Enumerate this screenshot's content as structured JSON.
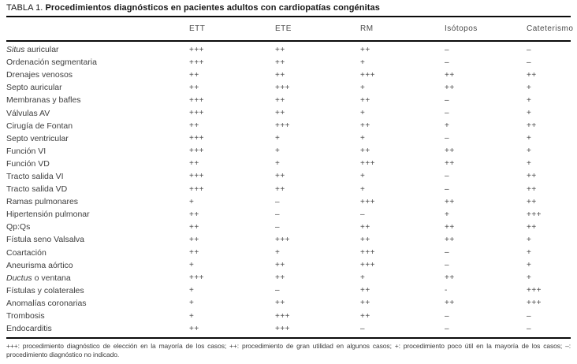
{
  "title": {
    "prefix": "TABLA 1.",
    "text": "Procedimientos diagnósticos en pacientes adultos con cardiopatías congénitas"
  },
  "table": {
    "columns": [
      "ETT",
      "ETE",
      "RM",
      "Isótopos",
      "Cateterismo"
    ],
    "rows": [
      {
        "italic": "Situs",
        "rest": " auricular",
        "values": [
          "+++",
          "++",
          "++",
          "–",
          "–"
        ]
      },
      {
        "italic": "",
        "rest": "Ordenación segmentaria",
        "values": [
          "+++",
          "++",
          "+",
          "–",
          "–"
        ]
      },
      {
        "italic": "",
        "rest": "Drenajes venosos",
        "values": [
          "++",
          "++",
          "+++",
          "++",
          "++"
        ]
      },
      {
        "italic": "",
        "rest": "Septo auricular",
        "values": [
          "++",
          "+++",
          "+",
          "++",
          "+"
        ]
      },
      {
        "italic": "",
        "rest": "Membranas y bafles",
        "values": [
          "+++",
          "++",
          "++",
          "–",
          "+"
        ]
      },
      {
        "italic": "",
        "rest": "Válvulas AV",
        "values": [
          "+++",
          "++",
          "+",
          "–",
          "+"
        ]
      },
      {
        "italic": "",
        "rest": "Cirugía de Fontan",
        "values": [
          "++",
          "+++",
          "++",
          "+",
          "++"
        ]
      },
      {
        "italic": "",
        "rest": "Septo ventricular",
        "values": [
          "+++",
          "+",
          "+",
          "–",
          "+"
        ]
      },
      {
        "italic": "",
        "rest": "Función VI",
        "values": [
          "+++",
          "+",
          "++",
          "++",
          "+"
        ]
      },
      {
        "italic": "",
        "rest": "Función VD",
        "values": [
          "++",
          "+",
          "+++",
          "++",
          "+"
        ]
      },
      {
        "italic": "",
        "rest": "Tracto salida VI",
        "values": [
          "+++",
          "++",
          "+",
          "–",
          "++"
        ]
      },
      {
        "italic": "",
        "rest": "Tracto salida VD",
        "values": [
          "+++",
          "++",
          "+",
          "–",
          "++"
        ]
      },
      {
        "italic": "",
        "rest": "Ramas pulmonares",
        "values": [
          "+",
          "–",
          "+++",
          "++",
          "++"
        ]
      },
      {
        "italic": "",
        "rest": "Hipertensión pulmonar",
        "values": [
          "++",
          "–",
          "–",
          "+",
          "+++"
        ]
      },
      {
        "italic": "",
        "rest": "Qp:Qs",
        "values": [
          "++",
          "–",
          "++",
          "++",
          "++"
        ]
      },
      {
        "italic": "",
        "rest": "Fístula seno Valsalva",
        "values": [
          "++",
          "+++",
          "++",
          "++",
          "+"
        ]
      },
      {
        "italic": "",
        "rest": "Coartación",
        "values": [
          "++",
          "+",
          "+++",
          "–",
          "+"
        ]
      },
      {
        "italic": "",
        "rest": "Aneurisma aórtico",
        "values": [
          "+",
          "++",
          "+++",
          "–",
          "+"
        ]
      },
      {
        "italic": "Ductus",
        "rest": " o ventana",
        "values": [
          "+++",
          "++",
          "+",
          "++",
          "+"
        ]
      },
      {
        "italic": "",
        "rest": "Fístulas y colaterales",
        "values": [
          "+",
          "–",
          "++",
          "-",
          "+++"
        ]
      },
      {
        "italic": "",
        "rest": "Anomalías coronarias",
        "values": [
          "+",
          "++",
          "++",
          "++",
          "+++"
        ]
      },
      {
        "italic": "",
        "rest": "Trombosis",
        "values": [
          "+",
          "+++",
          "++",
          "–",
          "–"
        ]
      },
      {
        "italic": "",
        "rest": "Endocarditis",
        "values": [
          "++",
          "+++",
          "–",
          "–",
          "–"
        ]
      }
    ]
  },
  "footnote": "+++: procedimiento diagnóstico de elección en la mayoría de los casos; ++: procedimiento de gran utilidad en algunos casos; +: procedimiento poco útil en la mayoría de los casos; –: procedimiento diagnóstico no indicado.",
  "colors": {
    "background": "#ffffff",
    "rule": "#0a0a0a",
    "text": "#3d3d3d",
    "title_text": "#161616"
  }
}
